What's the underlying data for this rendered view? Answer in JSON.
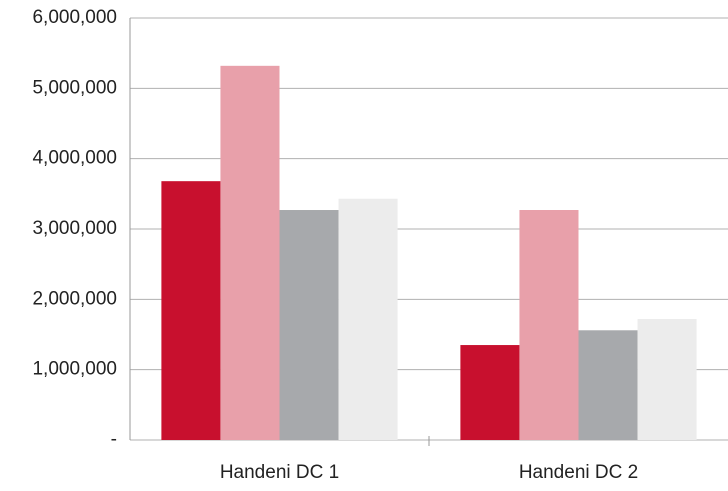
{
  "chart_data": {
    "type": "bar",
    "categories": [
      "Handeni DC 1",
      "Handeni DC 2"
    ],
    "series": [
      {
        "color": "#c8102e",
        "values": [
          3680000,
          1350000
        ]
      },
      {
        "color": "#e8a0aa",
        "values": [
          5320000,
          3270000
        ]
      },
      {
        "color": "#a7a9ac",
        "values": [
          3270000,
          1560000
        ]
      },
      {
        "color": "#ececec",
        "values": [
          3430000,
          1720000
        ]
      }
    ],
    "ylim": [
      0,
      6000000
    ],
    "yticks": [
      {
        "value": 0,
        "label": "-"
      },
      {
        "value": 1000000,
        "label": "1,000,000"
      },
      {
        "value": 2000000,
        "label": "2,000,000"
      },
      {
        "value": 3000000,
        "label": "3,000,000"
      },
      {
        "value": 4000000,
        "label": "4,000,000"
      },
      {
        "value": 5000000,
        "label": "5,000,000"
      },
      {
        "value": 6000000,
        "label": "6,000,000"
      }
    ],
    "grid": true
  }
}
